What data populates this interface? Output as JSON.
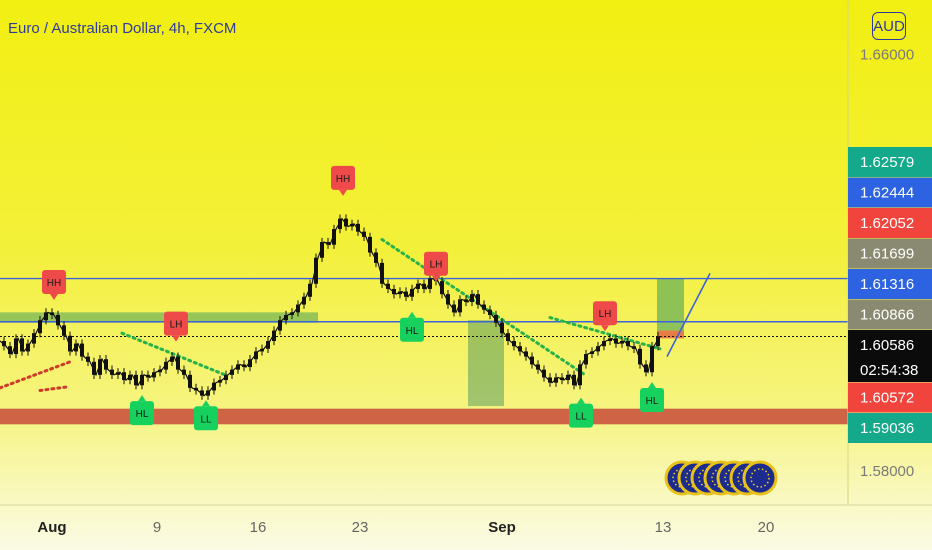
{
  "header": {
    "title": "Euro / Australian Dollar, 4h, FXCM",
    "currency_badge": "AUD"
  },
  "countdown": "02:54:38",
  "colors": {
    "up_tag": "#14a98a",
    "blue_tag": "#2d62e0",
    "red_tag": "#f0443d",
    "gray_tag": "#8a8a72",
    "current_tag": "#0b0b0b",
    "hh_lh_label": "#ef4a4a",
    "hl_ll_label": "#17d15e"
  },
  "chart_data": {
    "type": "line",
    "instrument": "EUR/AUD",
    "timeframe": "4h",
    "x_ticks": [
      "Aug",
      "9",
      "16",
      "23",
      "Sep",
      "13",
      "20"
    ],
    "y_ticks": [
      "1.66000",
      "1.58000"
    ],
    "ylim": [
      1.5735,
      1.6705
    ],
    "grid": false,
    "price_tags": [
      {
        "value": "1.62579",
        "kind": "up"
      },
      {
        "value": "1.62444",
        "kind": "blue"
      },
      {
        "value": "1.62052",
        "kind": "red"
      },
      {
        "value": "1.61699",
        "kind": "gray"
      },
      {
        "value": "1.61316",
        "kind": "blue"
      },
      {
        "value": "1.60866",
        "kind": "gray"
      },
      {
        "value": "1.60586",
        "kind": "current"
      },
      {
        "value": "1.60572",
        "kind": "red"
      },
      {
        "value": "1.59036",
        "kind": "up"
      }
    ],
    "swing_labels": [
      {
        "text": "HH",
        "x": 54,
        "y": 1.6125,
        "side": "above"
      },
      {
        "text": "LH",
        "x": 176,
        "y": 1.6045,
        "side": "above"
      },
      {
        "text": "HH",
        "x": 343,
        "y": 1.6325,
        "side": "above"
      },
      {
        "text": "LH",
        "x": 436,
        "y": 1.616,
        "side": "above"
      },
      {
        "text": "LH",
        "x": 605,
        "y": 1.6065,
        "side": "above"
      },
      {
        "text": "HL",
        "x": 142,
        "y": 1.595,
        "side": "below"
      },
      {
        "text": "LL",
        "x": 206,
        "y": 1.594,
        "side": "below"
      },
      {
        "text": "HL",
        "x": 412,
        "y": 1.611,
        "side": "below"
      },
      {
        "text": "LL",
        "x": 581,
        "y": 1.5945,
        "side": "below"
      },
      {
        "text": "HL",
        "x": 652,
        "y": 1.5975,
        "side": "below"
      }
    ],
    "series": [
      {
        "x": [
          0,
          6,
          12,
          18,
          24,
          30,
          36,
          42,
          48,
          54,
          60,
          66,
          72,
          78,
          84,
          90,
          96,
          102,
          108,
          114,
          120,
          126,
          132,
          138,
          144,
          150,
          156,
          162,
          168,
          174,
          180,
          186,
          192,
          198,
          204,
          210,
          216,
          222,
          228,
          234,
          240,
          246,
          252,
          258,
          264,
          270,
          276,
          282,
          288,
          294,
          300,
          306,
          312,
          318,
          324,
          330,
          336,
          342,
          348,
          354,
          360,
          366,
          372,
          378,
          384,
          390,
          396,
          402,
          408,
          414,
          420,
          426,
          432,
          438,
          444,
          450,
          456,
          462,
          468,
          474,
          480,
          486,
          492,
          498,
          504,
          510,
          516,
          522,
          528,
          534,
          540,
          546,
          552,
          558,
          564,
          570,
          576,
          582,
          588,
          594,
          600,
          606,
          612,
          618,
          624,
          630,
          636,
          642,
          648,
          654,
          660
        ],
        "values": [
          1.605,
          1.604,
          1.6025,
          1.6055,
          1.603,
          1.6045,
          1.6065,
          1.609,
          1.6105,
          1.61,
          1.608,
          1.606,
          1.603,
          1.6045,
          1.602,
          1.601,
          1.5985,
          1.6015,
          1.5995,
          1.5985,
          1.599,
          1.5975,
          1.5985,
          1.5965,
          1.5985,
          1.598,
          1.599,
          1.5995,
          1.601,
          1.602,
          1.5995,
          1.5985,
          1.596,
          1.5955,
          1.5945,
          1.5955,
          1.597,
          1.5975,
          1.5985,
          1.5995,
          1.6005,
          1.6,
          1.6015,
          1.603,
          1.6035,
          1.605,
          1.607,
          1.609,
          1.61,
          1.6105,
          1.612,
          1.6135,
          1.616,
          1.621,
          1.624,
          1.6235,
          1.6265,
          1.6285,
          1.627,
          1.6275,
          1.626,
          1.625,
          1.622,
          1.62,
          1.616,
          1.615,
          1.614,
          1.6145,
          1.6135,
          1.615,
          1.616,
          1.615,
          1.617,
          1.6165,
          1.614,
          1.612,
          1.6105,
          1.613,
          1.6125,
          1.614,
          1.612,
          1.611,
          1.61,
          1.6085,
          1.6065,
          1.605,
          1.604,
          1.603,
          1.602,
          1.6005,
          1.5995,
          1.598,
          1.597,
          1.598,
          1.5975,
          1.5985,
          1.5965,
          1.6005,
          1.6025,
          1.603,
          1.604,
          1.605,
          1.6055,
          1.6045,
          1.605,
          1.604,
          1.6035,
          1.6005,
          1.599,
          1.604,
          1.6059
        ]
      }
    ]
  }
}
